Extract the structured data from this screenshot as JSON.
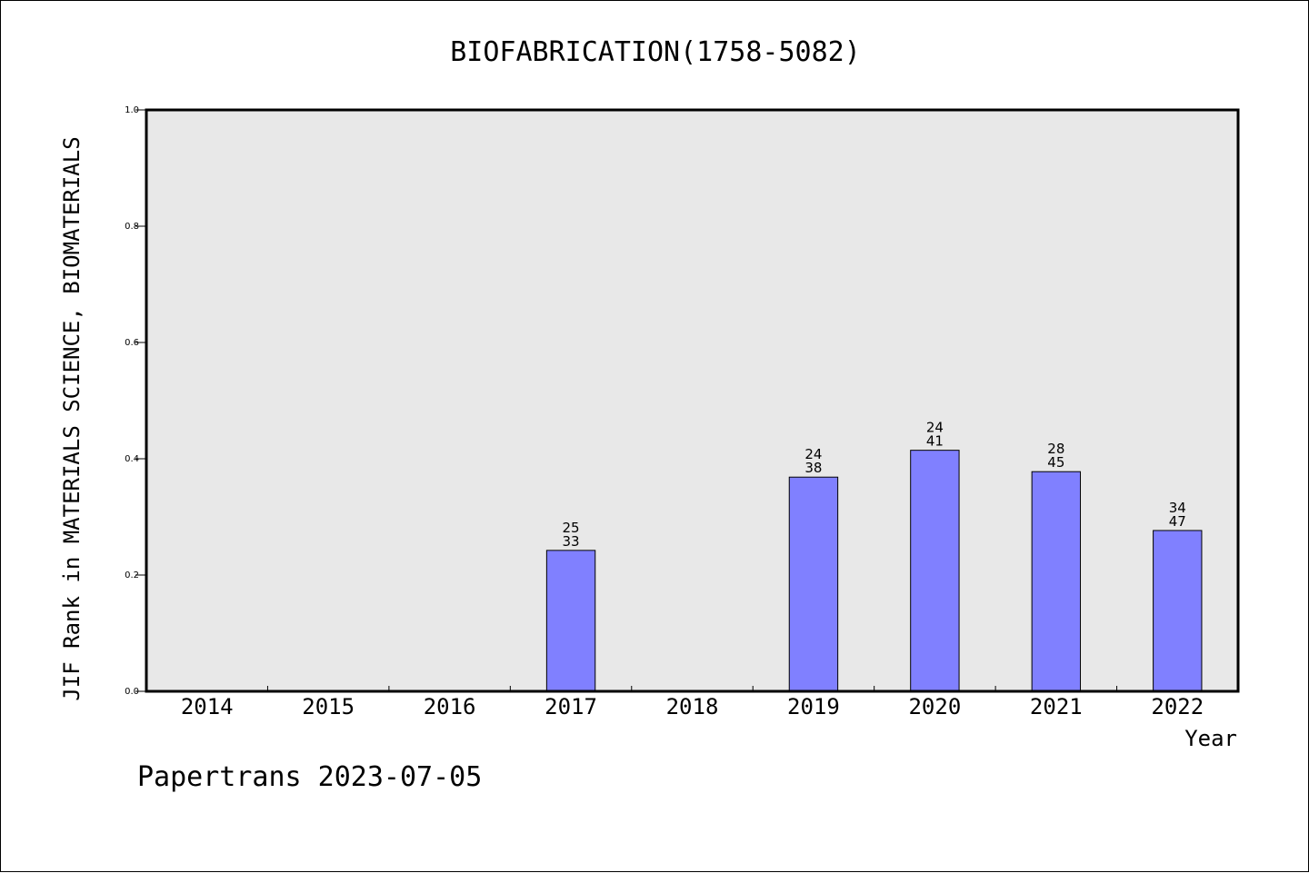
{
  "chart_data": {
    "type": "bar",
    "title": "BIOFABRICATION(1758-5082)",
    "xlabel": "Year",
    "ylabel": "JIF Rank in MATERIALS SCIENCE, BIOMATERIALS",
    "ylim": [
      0,
      1.0
    ],
    "yticks": [
      "0.0",
      "0.2",
      "0.4",
      "0.6",
      "0.8",
      "1.0"
    ],
    "ytick_values": [
      0,
      0.2,
      0.4,
      0.6,
      0.8,
      1.0
    ],
    "grid": false,
    "categories": [
      "2014",
      "2015",
      "2016",
      "2017",
      "2018",
      "2019",
      "2020",
      "2021",
      "2022"
    ],
    "values": [
      null,
      null,
      null,
      0.2424,
      null,
      0.3684,
      0.4146,
      0.3778,
      0.2766
    ],
    "rank": [
      null,
      null,
      null,
      "25",
      null,
      "24",
      "24",
      "28",
      "34"
    ],
    "total": [
      null,
      null,
      null,
      "33",
      null,
      "38",
      "41",
      "45",
      "47"
    ],
    "bar_color": "#8080ff",
    "plot_background": "#e8e8e8"
  },
  "footer": "Papertrans 2023-07-05"
}
